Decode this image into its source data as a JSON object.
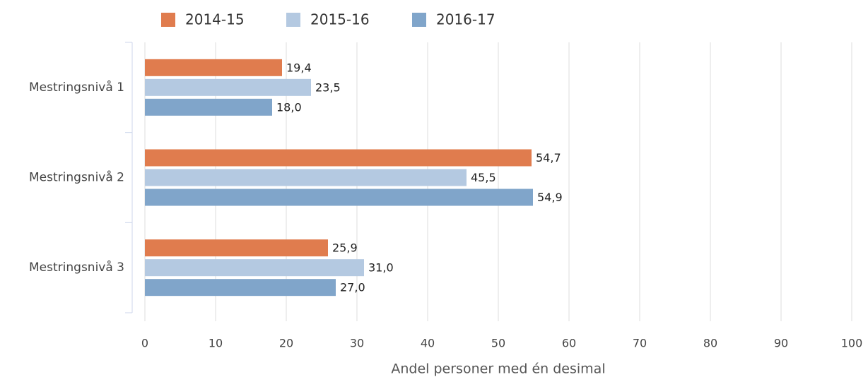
{
  "chart_data": {
    "type": "bar",
    "orientation": "horizontal",
    "categories": [
      "Mestringsnivå 1",
      "Mestringsnivå 2",
      "Mestringsnivå 3"
    ],
    "series": [
      {
        "name": "2014-15",
        "color": "#e07c4e",
        "values": [
          19.4,
          54.7,
          25.9
        ],
        "value_labels": [
          "19,4",
          "54,7",
          "25,9"
        ]
      },
      {
        "name": "2015-16",
        "color": "#b4c9e1",
        "values": [
          23.5,
          45.5,
          31.0
        ],
        "value_labels": [
          "23,5",
          "45,5",
          "31,0"
        ]
      },
      {
        "name": "2016-17",
        "color": "#80a5ca",
        "values": [
          18.0,
          54.9,
          27.0
        ],
        "value_labels": [
          "18,0",
          "54,9",
          "27,0"
        ]
      }
    ],
    "xlabel": "Andel personer med én desimal",
    "xlim": [
      0,
      100
    ],
    "xticks": [
      0,
      10,
      20,
      30,
      40,
      50,
      60,
      70,
      80,
      90,
      100
    ],
    "grid": true,
    "legend": "top"
  }
}
